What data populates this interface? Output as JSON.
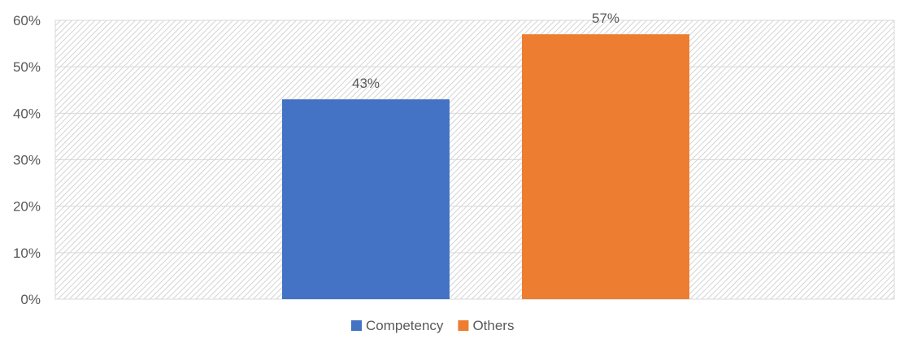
{
  "chart_data": {
    "type": "bar",
    "title": "",
    "xlabel": "",
    "ylabel": "",
    "ylim": [
      0,
      0.6
    ],
    "yticks": [
      0,
      0.1,
      0.2,
      0.3,
      0.4,
      0.5,
      0.6
    ],
    "ytick_labels": [
      "0%",
      "10%",
      "20%",
      "30%",
      "40%",
      "50%",
      "60%"
    ],
    "grid": true,
    "legend_position": "bottom",
    "plot_background": "hatched-gray",
    "series": [
      {
        "name": "Competency",
        "value": 0.43,
        "label": "43%",
        "color": "#4472C4"
      },
      {
        "name": "Others",
        "value": 0.57,
        "label": "57%",
        "color": "#ED7D31"
      }
    ]
  }
}
